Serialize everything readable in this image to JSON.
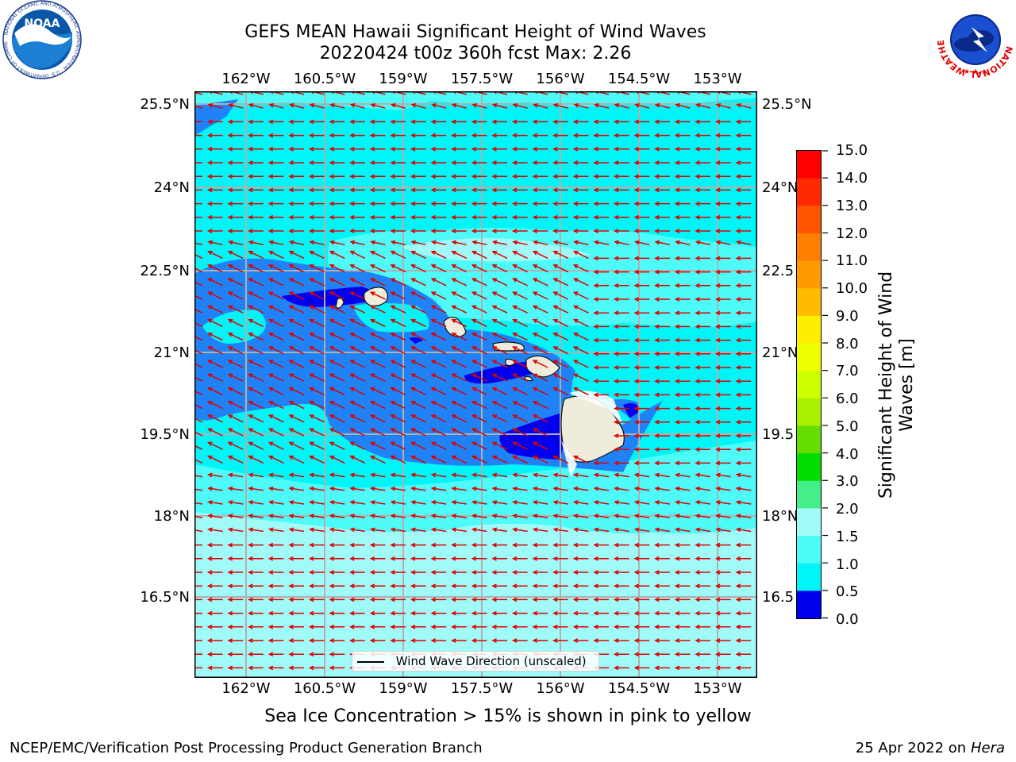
{
  "title": {
    "line1": "GEFS MEAN Hawaii Significant Height of Wind Waves",
    "line2": "20220424 t00z 360h fcst   Max: 2.26"
  },
  "map": {
    "lon_ticks": [
      "162°W",
      "160.5°W",
      "159°W",
      "157.5°W",
      "156°W",
      "154.5°W",
      "153°W"
    ],
    "lat_ticks": [
      "25.5°N",
      "24°N",
      "22.5°N",
      "21°N",
      "19.5°N",
      "18°N",
      "16.5°N"
    ],
    "lat_ticks_right": [
      "25.5°N",
      "24°N",
      "22.5",
      "21°N",
      "19.5",
      "18°N",
      "16.5"
    ],
    "legend_label": "Wind Wave Direction (unscaled)",
    "colors": {
      "sea_0_0.5": "#0000ee",
      "sea_0.5_1": "#1f83f7",
      "sea_1_1.5": "#00f6f6",
      "sea_1.5_2": "#4dfbf8",
      "sea_2_3": "#a0fbf8",
      "land": "#efecdc",
      "arrow": "#e00000"
    }
  },
  "colorbar": {
    "label": "Significant Height of Wind Waves [m]",
    "label_line1": "Significant Height of Wind",
    "label_line2": "Waves [m]",
    "ticks": [
      "15.0",
      "14.0",
      "13.0",
      "12.0",
      "11.0",
      "10.0",
      "9.0",
      "8.0",
      "7.0",
      "6.0",
      "5.0",
      "4.0",
      "3.0",
      "2.0",
      "1.5",
      "1.0",
      "0.5",
      "0.0"
    ],
    "colors_top_to_bottom": [
      "#ff0000",
      "#ff2a00",
      "#ff5500",
      "#ff7f00",
      "#ff9900",
      "#ffbb00",
      "#ffee00",
      "#eeff00",
      "#ccff00",
      "#aaee00",
      "#66dd00",
      "#00dd00",
      "#44ee88",
      "#a0fbf8",
      "#4dfbf8",
      "#00f6f6",
      "#1f83f7",
      "#0000ee"
    ]
  },
  "subtitle": "Sea Ice Concentration > 15% is shown in pink to yellow",
  "footer": {
    "left": "NCEP/EMC/Verification Post Processing Product Generation Branch",
    "date": "25 Apr 2022 on ",
    "machine": "Hera"
  },
  "logos": {
    "noaa_text": "NOAA",
    "noaa_ring": "NATIONAL OCEANIC AND ATMOSPHERIC ADMINISTRATION · U.S. DEPARTMENT OF COMMERCE",
    "nws_ring": "NATIONAL WEATHER SERVICE"
  }
}
